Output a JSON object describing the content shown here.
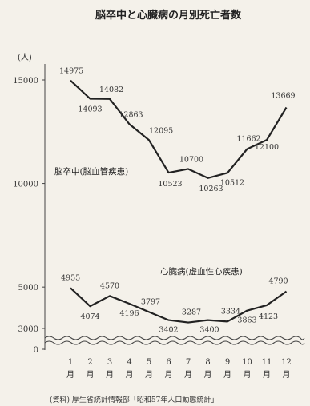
{
  "chart_data": {
    "type": "line",
    "title": "脳卒中と心臓病の月別死亡者数",
    "unit_label": "(人)",
    "y_ticks": [
      0,
      3000,
      5000,
      10000,
      15000
    ],
    "y_tick_labels": [
      "0",
      "3000",
      "5000",
      "10000",
      "15000"
    ],
    "y_axis_break": true,
    "categories": [
      "1月",
      "2月",
      "3月",
      "4月",
      "5月",
      "6月",
      "7月",
      "8月",
      "9月",
      "10月",
      "11月",
      "12月"
    ],
    "month_numbers": [
      "1",
      "2",
      "3",
      "4",
      "5",
      "6",
      "7",
      "8",
      "9",
      "10",
      "11",
      "12"
    ],
    "month_suffix": "月",
    "series": [
      {
        "name": "脳卒中(脳血管疾患)",
        "values": [
          14975,
          14093,
          14082,
          12863,
          12095,
          10523,
          10700,
          10263,
          10512,
          11662,
          12100,
          13669
        ]
      },
      {
        "name": "心臓病(虚血性心疾患)",
        "values": [
          4955,
          4074,
          4570,
          4196,
          3797,
          3402,
          3287,
          3400,
          3334,
          3863,
          4123,
          4790
        ]
      }
    ],
    "source": "(資料) 厚生省統計情報部「昭和57年人口動態統計」"
  }
}
